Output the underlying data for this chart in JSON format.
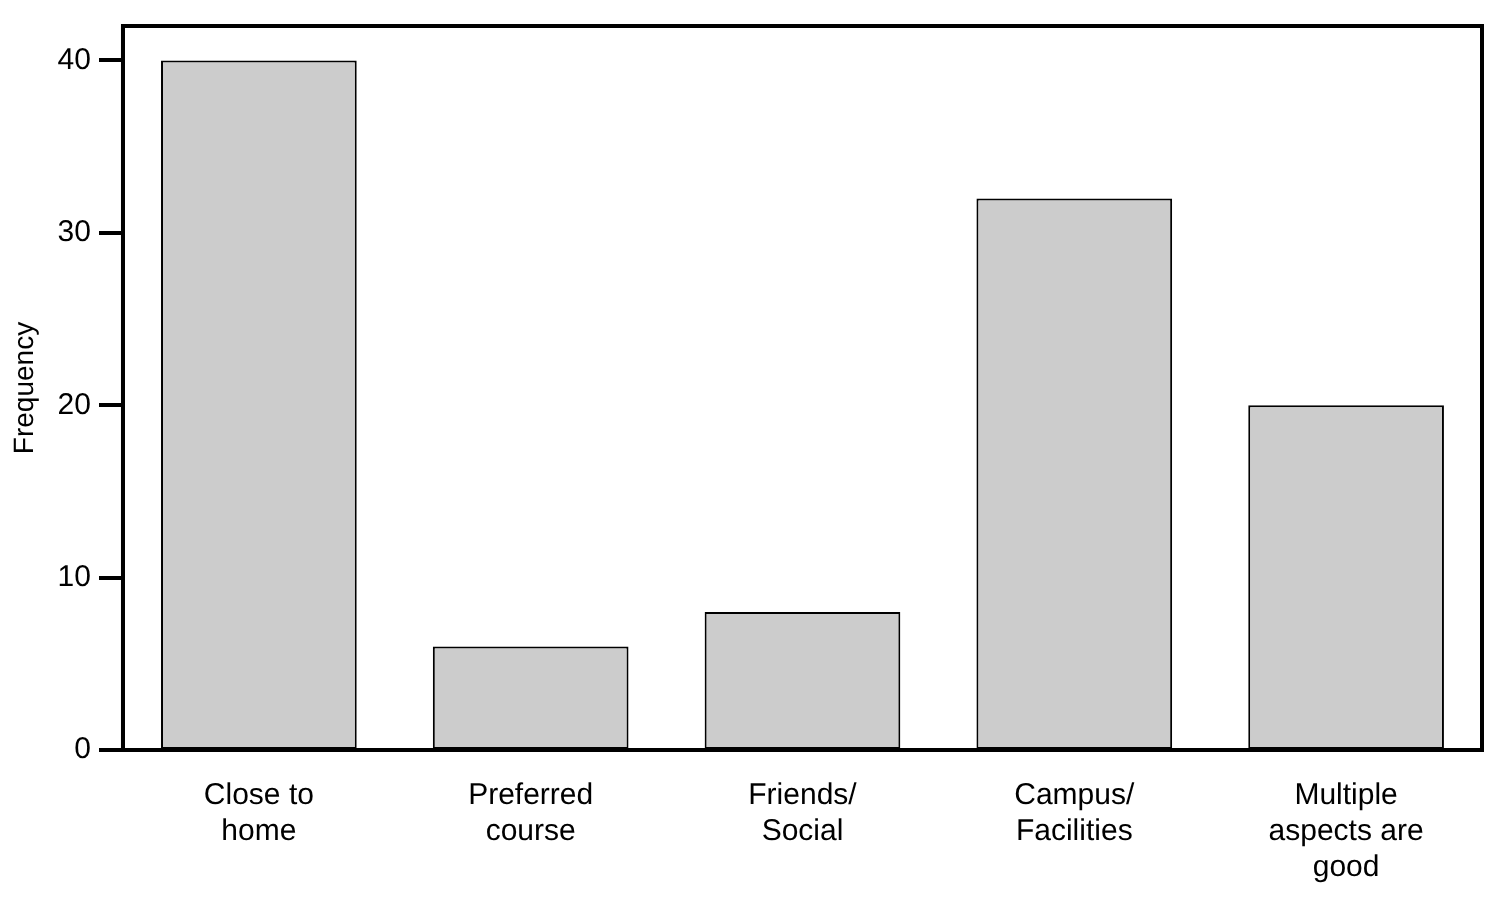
{
  "chart_data": {
    "type": "bar",
    "ylabel": "Frequency",
    "categories": [
      "Close to\nhome",
      "Preferred\ncourse",
      "Friends/\nSocial",
      "Campus/\nFacilities",
      "Multiple\naspects are\ngood"
    ],
    "values": [
      40,
      6,
      8,
      32,
      20
    ],
    "color": "#cccccc",
    "ylim": [
      0,
      42
    ],
    "yticks": [
      0,
      10,
      20,
      30,
      40
    ],
    "grid": false,
    "legend": false
  }
}
